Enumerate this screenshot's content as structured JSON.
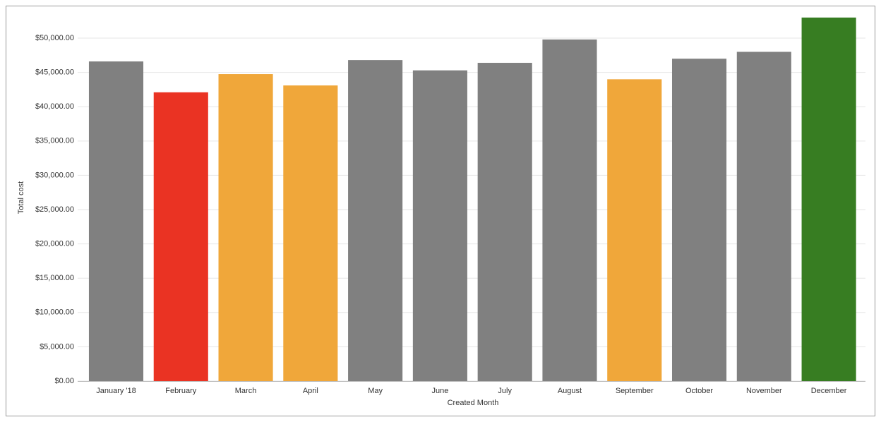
{
  "chart_data": {
    "type": "bar",
    "x_label": "Created Month",
    "y_label": "Total cost",
    "categories": [
      "January '18",
      "February",
      "March",
      "April",
      "May",
      "June",
      "July",
      "August",
      "September",
      "October",
      "November",
      "December"
    ],
    "values": [
      46600,
      42100,
      44750,
      43100,
      46800,
      45300,
      46400,
      49800,
      44000,
      47000,
      48000,
      53000
    ],
    "colors": [
      "#808080",
      "#ea3323",
      "#f0a73a",
      "#f0a73a",
      "#808080",
      "#808080",
      "#808080",
      "#808080",
      "#f0a73a",
      "#808080",
      "#808080",
      "#377d22"
    ],
    "ylim": [
      0,
      53500
    ],
    "yticks": [
      {
        "value": 0,
        "label": "$0.00"
      },
      {
        "value": 5000,
        "label": "$5,000.00"
      },
      {
        "value": 10000,
        "label": "$10,000.00"
      },
      {
        "value": 15000,
        "label": "$15,000.00"
      },
      {
        "value": 20000,
        "label": "$20,000.00"
      },
      {
        "value": 25000,
        "label": "$25,000.00"
      },
      {
        "value": 30000,
        "label": "$30,000.00"
      },
      {
        "value": 35000,
        "label": "$35,000.00"
      },
      {
        "value": 40000,
        "label": "$40,000.00"
      },
      {
        "value": 45000,
        "label": "$45,000.00"
      },
      {
        "value": 50000,
        "label": "$50,000.00"
      }
    ],
    "grid": true
  }
}
